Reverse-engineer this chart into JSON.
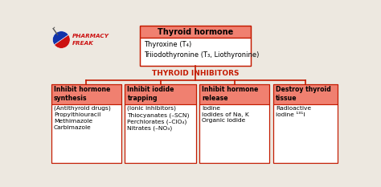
{
  "title": "Thyroid hormone",
  "thyroid_inhibitors_label": "THYROID INHIBITORS",
  "top_box_lines": [
    "Thyroxine (T₄)",
    "Triiodothyronine (T₃, Liothyronine)"
  ],
  "branch_headers": [
    "Inhibit hormone\nsynthesis",
    "Inhibit iodide\ntrapping",
    "Inhibit hormone\nrelease",
    "Destroy thyroid\ntissue"
  ],
  "branch_details": [
    "(Antithyroid drugs)\nPropylthiouracil\nMethimazole\nCarbimazole",
    "(Ionic inhibitors)\nThiocyanates (–SCN)\nPerchlorates (–ClO₄)\nNitrates (–NO₃)",
    "Iodine\nIodides of Na, K\nOrganic iodide",
    "Radioactive\niodine ¹³¹I"
  ],
  "header_bg": "#f08070",
  "header_border": "#c41a00",
  "detail_bg": "#ffffff",
  "detail_border": "#c41a00",
  "top_box_header_bg": "#f08070",
  "top_box_body_bg": "#ffffff",
  "top_box_border": "#c41a00",
  "line_color": "#c41a00",
  "inhibitors_label_color": "#c41a00",
  "background_color": "#ede8e0"
}
